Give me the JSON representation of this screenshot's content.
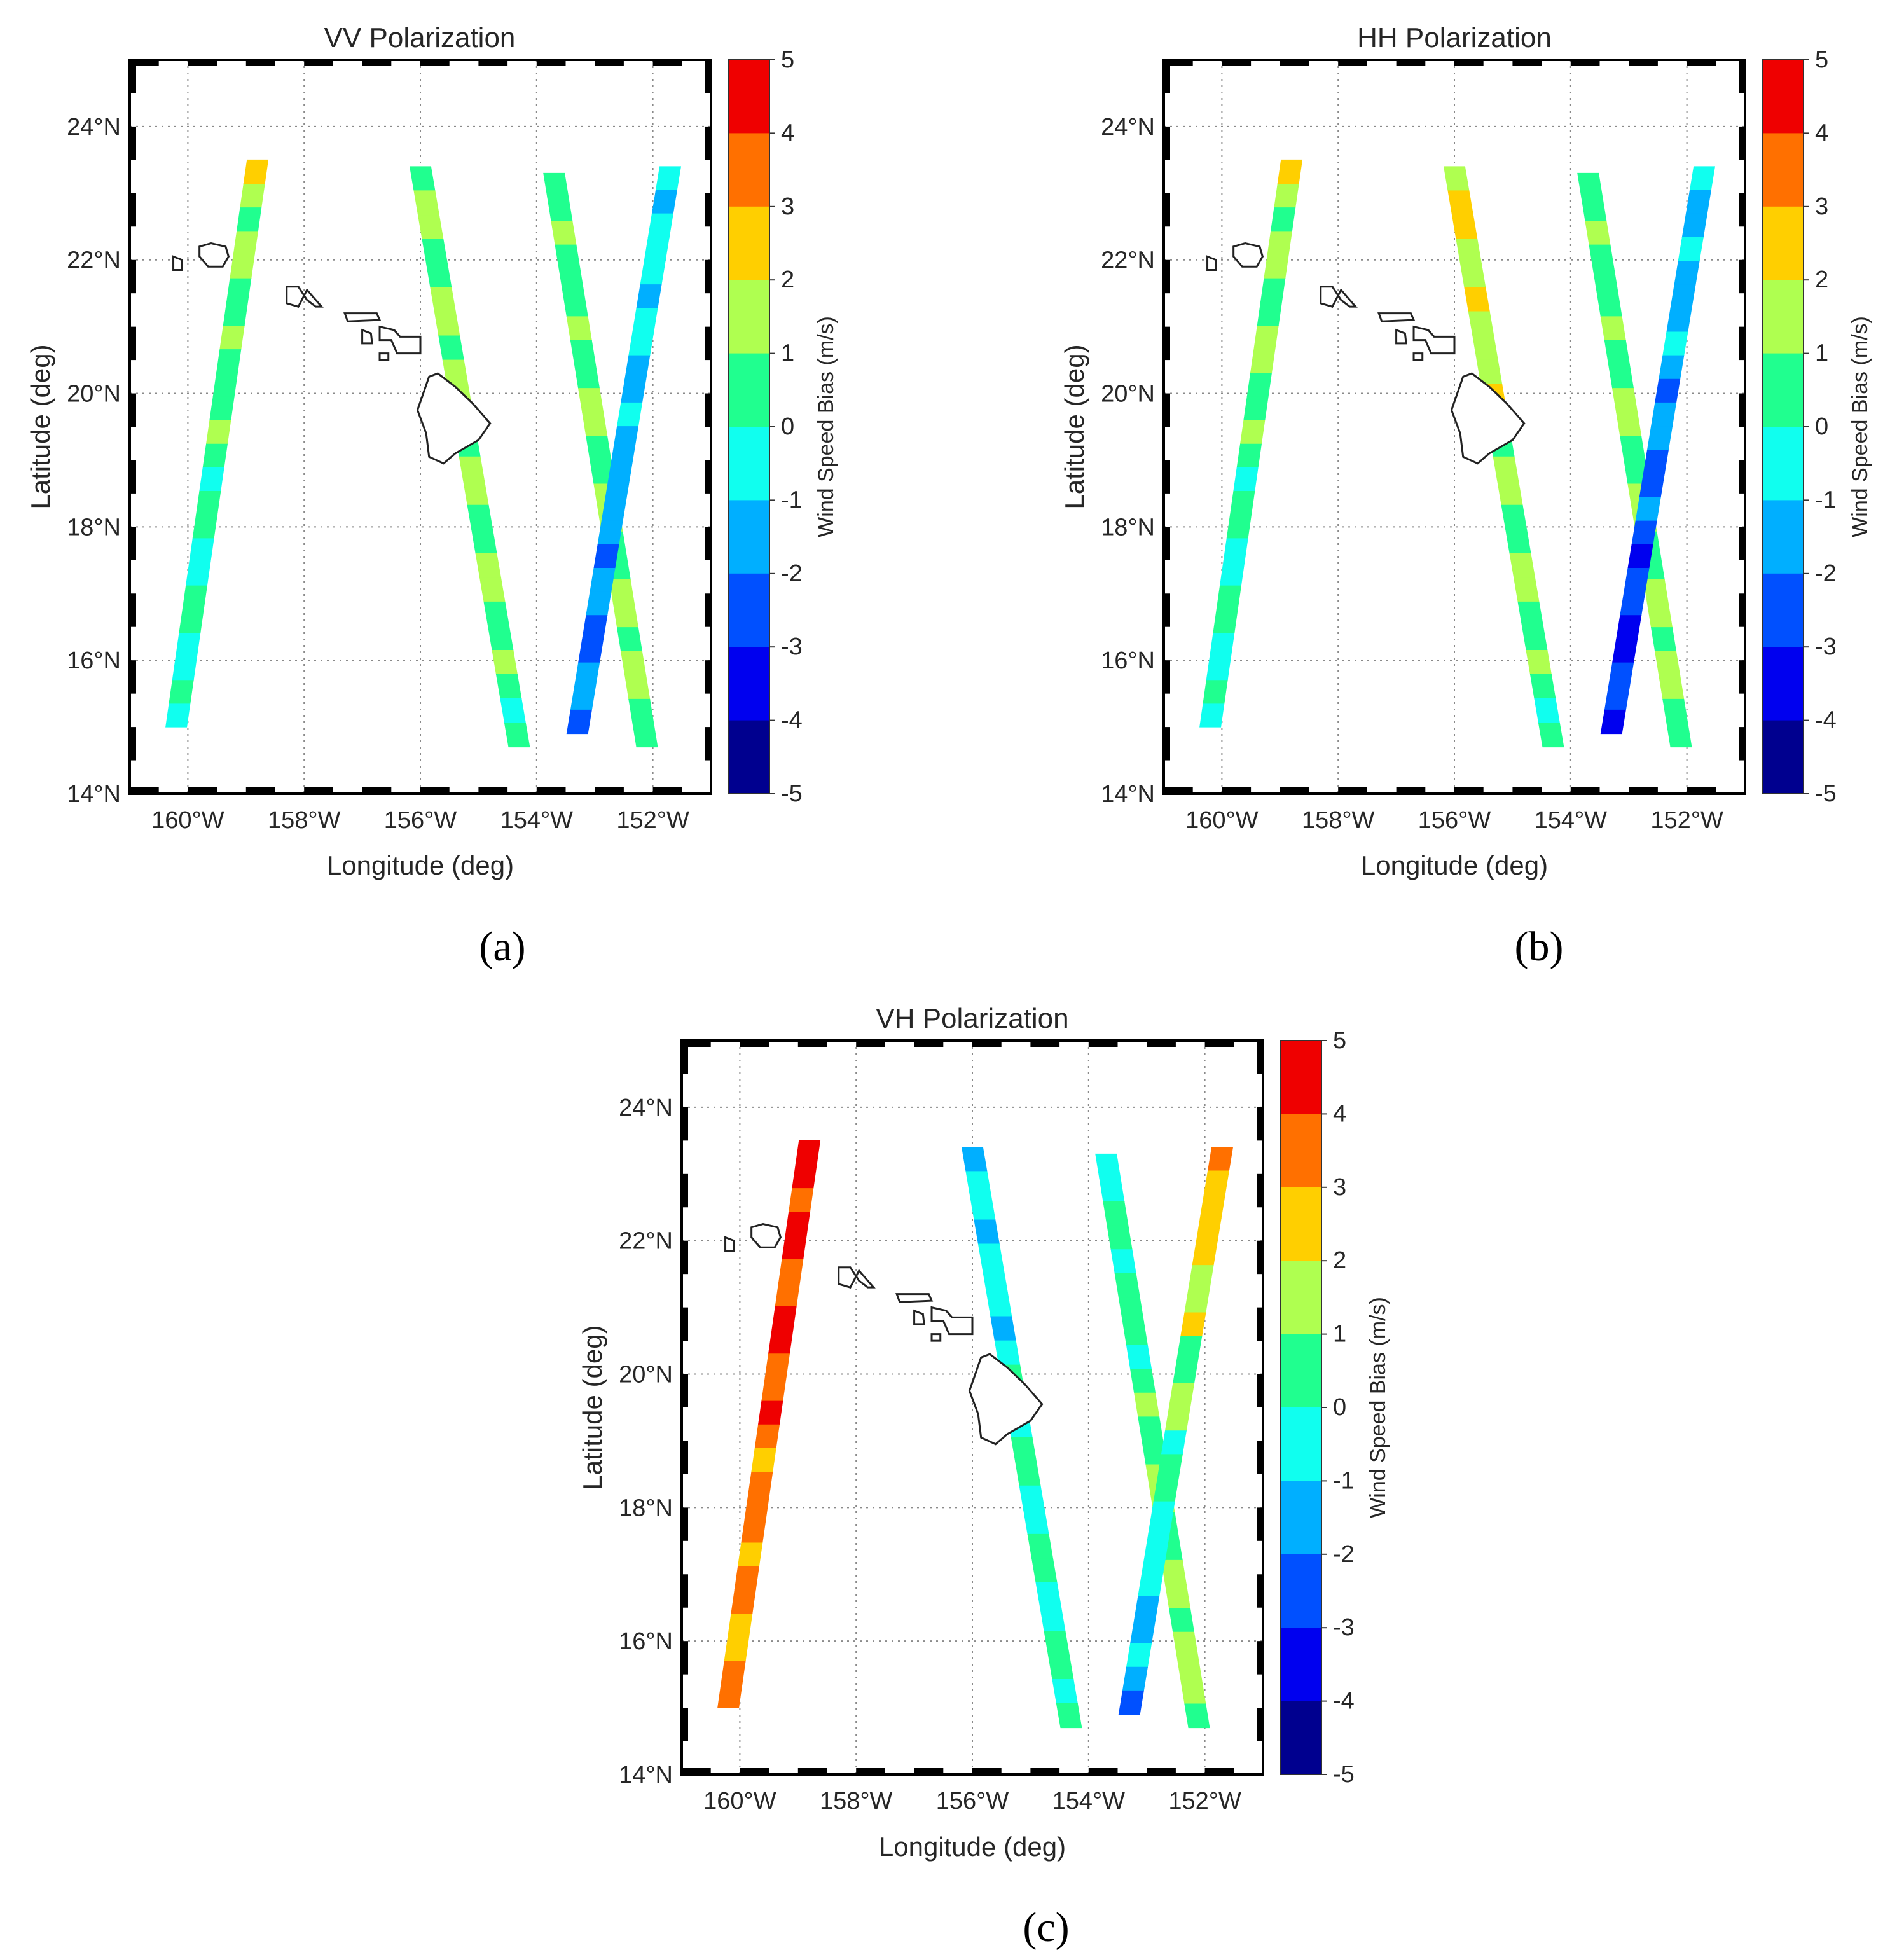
{
  "panels": [
    {
      "id": "a",
      "title": "VV Polarization",
      "xlabel": "Longitude (deg)",
      "ylabel": "Latitude (deg)",
      "panel_label": "(a)",
      "colorbar_label": "Wind Speed Bias (m/s)"
    },
    {
      "id": "b",
      "title": "HH Polarization",
      "xlabel": "Longitude (deg)",
      "ylabel": "Latitude (deg)",
      "panel_label": "(b)",
      "colorbar_label": "Wind Speed Bias (m/s)"
    },
    {
      "id": "c",
      "title": "VH Polarization",
      "xlabel": "Longitude (deg)",
      "ylabel": "Latitude (deg)",
      "panel_label": "(c)",
      "colorbar_label": "Wind Speed Bias (m/s)"
    }
  ],
  "chart_data": [
    {
      "type": "heatmap",
      "title": "VV Polarization",
      "xlabel": "Longitude (deg)",
      "ylabel": "Latitude (deg)",
      "xlim": [
        -161,
        -151
      ],
      "ylim": [
        14,
        25
      ],
      "x_ticks": [
        "160°W",
        "158°W",
        "156°W",
        "154°W",
        "152°W"
      ],
      "y_ticks": [
        "14°N",
        "16°N",
        "18°N",
        "20°N",
        "22°N",
        "24°N"
      ],
      "colorbar": {
        "label": "Wind Speed Bias (m/s)",
        "min": -5,
        "max": 5,
        "ticks": [
          "5",
          "4",
          "3",
          "2",
          "1",
          "0",
          "-1",
          "-2",
          "-3",
          "-4",
          "-5"
        ]
      },
      "tracks": [
        {
          "start": [
            -160.2,
            15.0
          ],
          "end": [
            -158.8,
            23.5
          ],
          "bias_start": -0.6,
          "bias_end": 1.5
        },
        {
          "start": [
            -156.0,
            23.4
          ],
          "end": [
            -154.3,
            14.7
          ],
          "bias_start": 1.5,
          "bias_end": 0.4
        },
        {
          "start": [
            -153.7,
            23.3
          ],
          "end": [
            -152.1,
            14.7
          ],
          "bias_start": 0.6,
          "bias_end": 1.2
        },
        {
          "start": [
            -151.7,
            23.4
          ],
          "end": [
            -153.3,
            14.9
          ],
          "bias_start": -0.3,
          "bias_end": -2.5
        }
      ]
    },
    {
      "type": "heatmap",
      "title": "HH Polarization",
      "xlabel": "Longitude (deg)",
      "ylabel": "Latitude (deg)",
      "xlim": [
        -161,
        -151
      ],
      "ylim": [
        14,
        25
      ],
      "x_ticks": [
        "160°W",
        "158°W",
        "156°W",
        "154°W",
        "152°W"
      ],
      "y_ticks": [
        "14°N",
        "16°N",
        "18°N",
        "20°N",
        "22°N",
        "24°N"
      ],
      "colorbar": {
        "label": "Wind Speed Bias (m/s)",
        "min": -5,
        "max": 5,
        "ticks": [
          "5",
          "4",
          "3",
          "2",
          "1",
          "0",
          "-1",
          "-2",
          "-3",
          "-4",
          "-5"
        ]
      },
      "tracks": [
        {
          "start": [
            -160.2,
            15.0
          ],
          "end": [
            -158.8,
            23.5
          ],
          "bias_start": -0.5,
          "bias_end": 1.5
        },
        {
          "start": [
            -156.0,
            23.4
          ],
          "end": [
            -154.3,
            14.7
          ],
          "bias_start": 2.2,
          "bias_end": 0.4
        },
        {
          "start": [
            -153.7,
            23.3
          ],
          "end": [
            -152.1,
            14.7
          ],
          "bias_start": 0.6,
          "bias_end": 1.3
        },
        {
          "start": [
            -151.7,
            23.4
          ],
          "end": [
            -153.3,
            14.9
          ],
          "bias_start": -0.7,
          "bias_end": -3.2
        }
      ]
    },
    {
      "type": "heatmap",
      "title": "VH Polarization",
      "xlabel": "Longitude (deg)",
      "ylabel": "Latitude (deg)",
      "xlim": [
        -161,
        -151
      ],
      "ylim": [
        14,
        25
      ],
      "x_ticks": [
        "160°W",
        "158°W",
        "156°W",
        "154°W",
        "152°W"
      ],
      "y_ticks": [
        "14°N",
        "16°N",
        "18°N",
        "20°N",
        "22°N",
        "24°N"
      ],
      "colorbar": {
        "label": "Wind Speed Bias (m/s)",
        "min": -5,
        "max": 5,
        "ticks": [
          "5",
          "4",
          "3",
          "2",
          "1",
          "0",
          "-1",
          "-2",
          "-3",
          "-4",
          "-5"
        ]
      },
      "tracks": [
        {
          "start": [
            -160.2,
            15.0
          ],
          "end": [
            -158.8,
            23.5
          ],
          "bias_start": 3.0,
          "bias_end": 4.3
        },
        {
          "start": [
            -156.0,
            23.4
          ],
          "end": [
            -154.3,
            14.7
          ],
          "bias_start": -0.8,
          "bias_end": 0.4
        },
        {
          "start": [
            -153.7,
            23.3
          ],
          "end": [
            -152.1,
            14.7
          ],
          "bias_start": -0.3,
          "bias_end": 1.5
        },
        {
          "start": [
            -151.7,
            23.4
          ],
          "end": [
            -153.3,
            14.9
          ],
          "bias_start": 3.0,
          "bias_end": -1.8
        }
      ]
    }
  ]
}
